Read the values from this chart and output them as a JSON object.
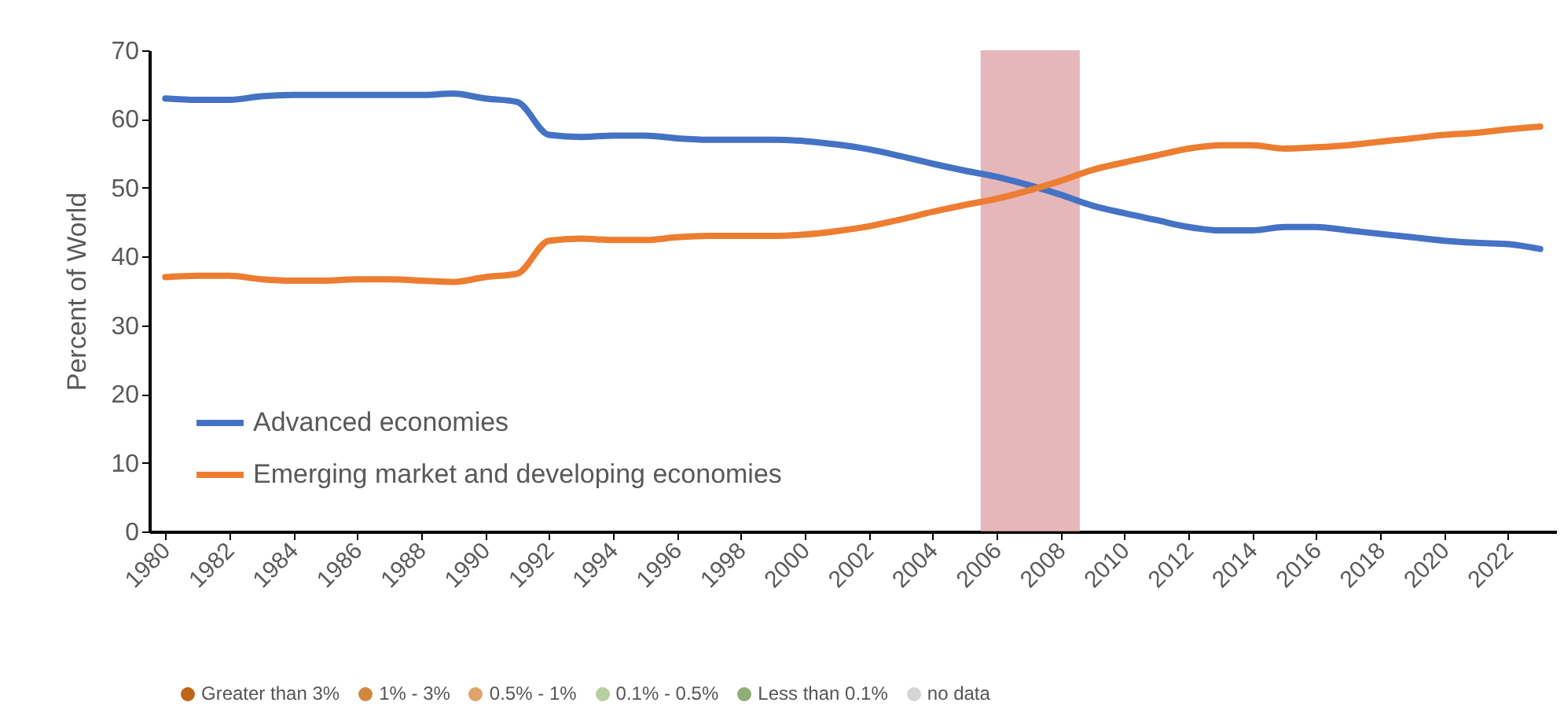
{
  "chart_data": {
    "type": "line",
    "ylabel": "Percent of World",
    "x": [
      1980,
      1981,
      1982,
      1983,
      1984,
      1985,
      1986,
      1987,
      1988,
      1989,
      1990,
      1991,
      1992,
      1993,
      1994,
      1995,
      1996,
      1997,
      1998,
      1999,
      2000,
      2001,
      2002,
      2003,
      2004,
      2005,
      2006,
      2007,
      2008,
      2009,
      2010,
      2011,
      2012,
      2013,
      2014,
      2015,
      2016,
      2017,
      2018,
      2019,
      2020,
      2021,
      2022,
      2023
    ],
    "series": [
      {
        "name": "Advanced economies",
        "color": "#4472c4",
        "values": [
          63.0,
          62.8,
          62.8,
          63.3,
          63.5,
          63.5,
          63.5,
          63.5,
          63.5,
          63.7,
          63.0,
          62.5,
          57.7,
          57.4,
          57.6,
          57.6,
          57.2,
          57.0,
          57.0,
          57.0,
          56.8,
          56.3,
          55.6,
          54.6,
          53.5,
          52.5,
          51.6,
          50.4,
          49.0,
          47.4,
          46.3,
          45.3,
          44.3,
          43.8,
          43.8,
          44.3,
          44.3,
          43.8,
          43.3,
          42.8,
          42.3,
          42.0,
          41.8,
          41.1
        ]
      },
      {
        "name": "Emerging market and developing economies",
        "color": "#ed7d31",
        "values": [
          37.0,
          37.2,
          37.2,
          36.7,
          36.5,
          36.5,
          36.7,
          36.7,
          36.5,
          36.3,
          37.0,
          37.5,
          42.3,
          42.6,
          42.4,
          42.4,
          42.8,
          43.0,
          43.0,
          43.0,
          43.2,
          43.7,
          44.4,
          45.4,
          46.5,
          47.5,
          48.4,
          49.6,
          51.0,
          52.6,
          53.7,
          54.7,
          55.7,
          56.2,
          56.2,
          55.7,
          55.9,
          56.2,
          56.7,
          57.2,
          57.7,
          58.0,
          58.5,
          58.9
        ]
      }
    ],
    "xlim": [
      1979.5,
      2023.5
    ],
    "xticks": [
      1980,
      1982,
      1984,
      1986,
      1988,
      1990,
      1992,
      1994,
      1996,
      1998,
      2000,
      2002,
      2004,
      2006,
      2008,
      2010,
      2012,
      2014,
      2016,
      2018,
      2020,
      2022
    ],
    "ylim": [
      0,
      70
    ],
    "yticks": [
      0,
      10,
      20,
      30,
      40,
      50,
      60,
      70
    ],
    "bands": [
      {
        "axis": "x",
        "from": 2005.5,
        "to": 2008.6,
        "color": "#dc9fa3"
      }
    ],
    "grid": false,
    "legend": "bottom left",
    "marker": "none",
    "line_style": "solid",
    "annotations": [
      "Greater than 3%",
      "1% - 3%",
      "0.5% - 1%",
      "0.1% - 0.5%",
      "Less than 0.1%",
      "no data"
    ]
  }
}
